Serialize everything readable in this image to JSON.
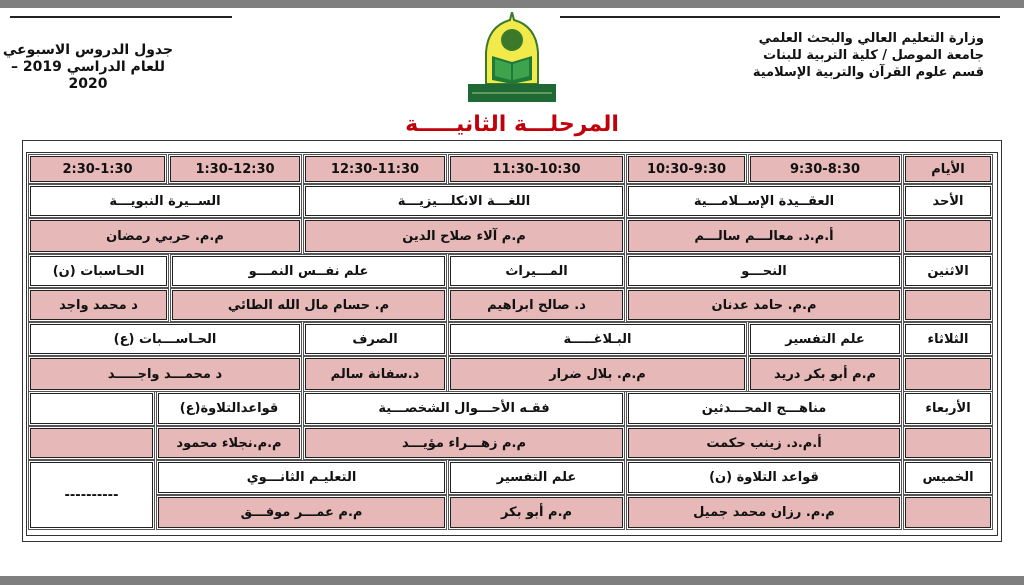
{
  "header": {
    "right_lines": [
      "وزارة التعليم العالي والبحث العلمي",
      "جامعة الموصل / كلية التربية للبنات",
      "قسم علوم القرآن والتربية الإسلامية"
    ],
    "left_lines": [
      "جدول الدروس الاسبوعي",
      "للعام الدراسي 2019 – 2020"
    ],
    "logo_text": "جامعة الموصل - كلية التربية للبنات قسم علوم القرآن والتربية الإسلامية"
  },
  "title": "المرحلـــة الثانيـــــة",
  "colors": {
    "pink": "#e6b8b7",
    "title_red": "#c0000a"
  },
  "table": {
    "days_label": "الأيام",
    "times": [
      "9:30-8:30",
      "10:30-9:30",
      "11:30-10:30",
      "12:30-11:30",
      "1:30-12:30",
      "2:30-1:30"
    ],
    "sunday": {
      "day": "الأحد",
      "subjects": [
        "العقــيدة الإســلامـــية",
        "اللغـــة الانكلـــيزيـــة",
        "الســيرة النبويـــة"
      ],
      "teachers": [
        "أ.م.د. معالـــم سالـــم",
        "م.م آلاء صلاح الدين",
        "م.م. حربي رمضان"
      ]
    },
    "monday": {
      "day": "الاثنين",
      "subjects": [
        "النحـــو",
        "المـــيراث",
        "علم نفــس النمـــو",
        "الحـاسبات (ن)"
      ],
      "teachers": [
        "م.م. حامد عدنان",
        "د. صالح ابراهيم",
        "م. حسام مال الله الطائي",
        "د محمد واجد"
      ]
    },
    "tuesday": {
      "day": "الثلاثاء",
      "subjects": [
        "علم التفسير",
        "البـلاغـــــة",
        "الصرف",
        "الحـاســـبات (ع)"
      ],
      "teachers": [
        "م.م أبو بكر دريد",
        "م.م. بلال ضرار",
        "د.سفانة سالم",
        "د محمـــد واجـــــد"
      ]
    },
    "wednesday": {
      "day": "الأربعاء",
      "subjects": [
        "مناهـــج المحـــدثين",
        "فقـه الأحـــوال الشخصـــية",
        "قواعدالتلاوة(ع)"
      ],
      "teachers": [
        "أ.م.د. زينب حكمت",
        "م.م زهـــراء مؤيـــد",
        "م.م.نجلاء محمود"
      ]
    },
    "thursday": {
      "day": "الخميس",
      "subjects": [
        "قواعد التلاوة (ن)",
        "علم التفسير",
        "التعليـم الثانـــوي"
      ],
      "teachers": [
        "م.م. رزان محمد جميل",
        "م.م أبو بكر",
        "م.م عمـــر موفـــق"
      ],
      "last_slot": "----------"
    }
  }
}
